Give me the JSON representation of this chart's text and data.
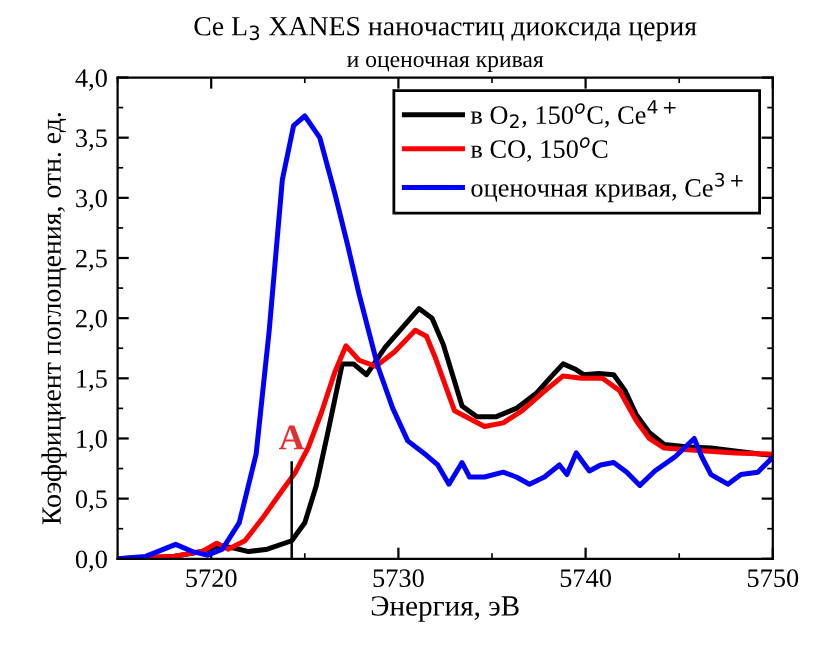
{
  "chart_data": {
    "type": "line",
    "title": "Ce L$_{3}$ XANES наночастиц диоксида церия",
    "subtitle": "и оценочная кривая",
    "xlabel": "Энергия, эВ",
    "ylabel": "Коэффициент поглощения, отн. ед.",
    "xlim": [
      5715,
      5750
    ],
    "xticks": [
      5720,
      5730,
      5740,
      5750
    ],
    "ylim": [
      0,
      4
    ],
    "yticks": [
      {
        "value": 0,
        "label": "0,0"
      },
      {
        "value": 0.5,
        "label": "0,5"
      },
      {
        "value": 1,
        "label": "1,0"
      },
      {
        "value": 1.5,
        "label": "1,5"
      },
      {
        "value": 2,
        "label": "2,0"
      },
      {
        "value": 2.5,
        "label": "2,5"
      },
      {
        "value": 3,
        "label": "3,0"
      },
      {
        "value": 3.5,
        "label": "3,5"
      },
      {
        "value": 4,
        "label": "4,0"
      }
    ],
    "grid": false,
    "legend": "top right",
    "marker": "none",
    "line_style": "solid",
    "series": [
      {
        "name": "в O$_{2}$, 150$^{o}$C, Ce$^{4+}$",
        "color": "#000000",
        "x": [
          5715,
          5718,
          5719.5,
          5720.4,
          5721.2,
          5722,
          5723,
          5724.3,
          5725,
          5725.6,
          5726.3,
          5727,
          5727.6,
          5728.3,
          5729.3,
          5730.2,
          5731.1,
          5731.8,
          5732.4,
          5733.4,
          5734.2,
          5735.2,
          5736.3,
          5737.4,
          5738.2,
          5738.8,
          5739.4,
          5739.9,
          5740.7,
          5741.5,
          5742.1,
          5742.7,
          5743.4,
          5744.2,
          5745.5,
          5746.7,
          5748.3,
          5749.9
        ],
        "values": [
          0,
          0.02,
          0.06,
          0.11,
          0.09,
          0.06,
          0.08,
          0.15,
          0.3,
          0.6,
          1.1,
          1.62,
          1.62,
          1.53,
          1.76,
          1.92,
          2.08,
          2.0,
          1.78,
          1.27,
          1.18,
          1.18,
          1.25,
          1.38,
          1.52,
          1.62,
          1.58,
          1.53,
          1.54,
          1.53,
          1.4,
          1.2,
          1.05,
          0.95,
          0.93,
          0.92,
          0.89,
          0.86
        ]
      },
      {
        "name": "в CO, 150$^{o}$C",
        "color": "#ff0000",
        "x": [
          5715,
          5718,
          5719.5,
          5720.3,
          5720.9,
          5721.8,
          5722.8,
          5723.8,
          5724.5,
          5725.2,
          5725.9,
          5726.6,
          5727.2,
          5727.9,
          5728.8,
          5729.8,
          5730.9,
          5731.5,
          5732,
          5733,
          5734.6,
          5735.6,
          5736.6,
          5737.7,
          5738.8,
          5739.8,
          5740.9,
          5741.8,
          5742.7,
          5743.4,
          5744.2,
          5746,
          5748,
          5749.9
        ],
        "values": [
          0,
          0.02,
          0.06,
          0.13,
          0.08,
          0.15,
          0.35,
          0.57,
          0.72,
          0.93,
          1.22,
          1.55,
          1.77,
          1.65,
          1.6,
          1.72,
          1.9,
          1.85,
          1.66,
          1.23,
          1.1,
          1.13,
          1.23,
          1.38,
          1.52,
          1.5,
          1.5,
          1.4,
          1.15,
          1.0,
          0.92,
          0.9,
          0.88,
          0.87
        ]
      },
      {
        "name": "оценочная кривая, Ce$^{3+}$",
        "color": "#0000ff",
        "x": [
          5715,
          5716.5,
          5718.1,
          5719,
          5719.8,
          5720.6,
          5721.5,
          5722.4,
          5723.1,
          5723.8,
          5724.4,
          5725,
          5725.8,
          5726.6,
          5727.3,
          5727.9,
          5728.9,
          5729.7,
          5730.5,
          5731.5,
          5732.1,
          5732.7,
          5733.4,
          5733.8,
          5734.6,
          5735.6,
          5736.3,
          5737,
          5737.8,
          5738.6,
          5739,
          5739.5,
          5740.2,
          5740.8,
          5741.5,
          5742.2,
          5742.9,
          5743.7,
          5744.8,
          5745.8,
          5746.2,
          5746.7,
          5747.6,
          5748.3,
          5749.2,
          5749.9
        ],
        "values": [
          0,
          0.02,
          0.12,
          0.06,
          0.03,
          0.08,
          0.3,
          0.87,
          1.9,
          3.15,
          3.6,
          3.68,
          3.5,
          3.04,
          2.6,
          2.2,
          1.6,
          1.25,
          0.98,
          0.86,
          0.78,
          0.62,
          0.8,
          0.68,
          0.68,
          0.72,
          0.68,
          0.62,
          0.68,
          0.78,
          0.7,
          0.88,
          0.73,
          0.78,
          0.8,
          0.72,
          0.61,
          0.73,
          0.85,
          1.0,
          0.85,
          0.7,
          0.62,
          0.7,
          0.72,
          0.83
        ]
      }
    ],
    "ref_lines": [
      {
        "axis": "x",
        "value": 5724.3,
        "label": "A",
        "color": "#000000"
      }
    ]
  }
}
